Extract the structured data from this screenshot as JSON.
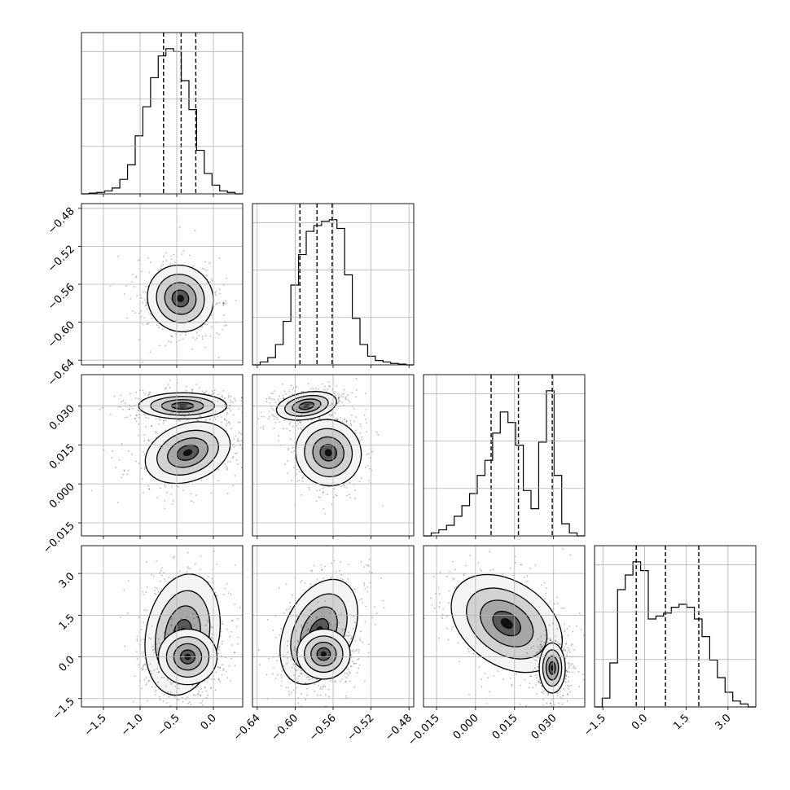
{
  "chart_data": {
    "type": "corner",
    "title": "",
    "grid": true,
    "parameters": [
      {
        "index": 0,
        "xticks": [
          "−1.5",
          "−1.0",
          "−0.5",
          "0.0"
        ],
        "xtick_values": [
          -1.5,
          -1.0,
          -0.5,
          0.0
        ],
        "range": [
          -1.8,
          0.4
        ],
        "yticks": [
          "−0.64",
          "−0.60",
          "−0.56",
          "−0.52",
          "−0.48"
        ],
        "ytick_values": [
          -0.64,
          -0.6,
          -0.56,
          -0.52,
          -0.48
        ],
        "quantiles": [
          -0.68,
          -0.44,
          -0.24
        ],
        "histogram": [
          0,
          0.005,
          0.01,
          0.02,
          0.04,
          0.1,
          0.2,
          0.4,
          0.6,
          0.8,
          0.95,
          1.0,
          0.98,
          0.78,
          0.58,
          0.3,
          0.14,
          0.06,
          0.02,
          0.01,
          0
        ]
      },
      {
        "index": 1,
        "xticks": [
          "−0.64",
          "−0.60",
          "−0.56",
          "−0.52",
          "−0.48"
        ],
        "xtick_values": [
          -0.64,
          -0.6,
          -0.56,
          -0.52,
          -0.48
        ],
        "range": [
          -0.645,
          -0.475
        ],
        "yticks": [
          "−0.015",
          "0.000",
          "0.015",
          "0.030"
        ],
        "ytick_values": [
          -0.015,
          0.0,
          0.015,
          0.03
        ],
        "quantiles": [
          -0.595,
          -0.577,
          -0.561
        ],
        "histogram": [
          0,
          0.02,
          0.05,
          0.14,
          0.3,
          0.55,
          0.76,
          0.92,
          0.96,
          0.99,
          1.0,
          0.94,
          0.62,
          0.32,
          0.14,
          0.06,
          0.03,
          0.02,
          0.01,
          0.005,
          0
        ]
      },
      {
        "index": 2,
        "xticks": [
          "−0.015",
          "0.000",
          "0.015",
          "0.030"
        ],
        "xtick_values": [
          -0.015,
          0.0,
          0.015,
          0.03
        ],
        "range": [
          -0.02,
          0.042
        ],
        "yticks": [
          "−1.5",
          "0.0",
          "1.5",
          "3.0"
        ],
        "ytick_values": [
          -1.5,
          0.0,
          1.5,
          3.0
        ],
        "quantiles": [
          0.006,
          0.0165,
          0.0295
        ],
        "histogram": [
          0,
          0.02,
          0.04,
          0.07,
          0.13,
          0.2,
          0.28,
          0.4,
          0.5,
          0.68,
          0.82,
          0.75,
          0.6,
          0.3,
          0.18,
          0.62,
          0.96,
          0.4,
          0.08,
          0.02,
          0
        ]
      },
      {
        "index": 3,
        "xticks": [
          "−1.5",
          "0.0",
          "1.5",
          "3.0"
        ],
        "xtick_values": [
          -1.5,
          0.0,
          1.5,
          3.0
        ],
        "range": [
          -1.8,
          4.0
        ],
        "quantiles": [
          -0.3,
          0.75,
          1.95
        ],
        "histogram": [
          0,
          0.06,
          0.3,
          0.8,
          0.9,
          0.99,
          0.93,
          0.6,
          0.62,
          0.64,
          0.68,
          0.7,
          0.68,
          0.6,
          0.48,
          0.32,
          0.2,
          0.1,
          0.04,
          0.02,
          0
        ]
      }
    ],
    "pairs": [
      {
        "row": 1,
        "col": 0,
        "blobs": [
          {
            "cx": -0.45,
            "cy": -0.575,
            "sx": 0.22,
            "sy": 0.018,
            "rot": -40
          }
        ]
      },
      {
        "row": 2,
        "col": 0,
        "blobs": [
          {
            "cx": -0.42,
            "cy": 0.03,
            "sx": 0.3,
            "sy": 0.0025,
            "rot": 0
          },
          {
            "cx": -0.35,
            "cy": 0.012,
            "sx": 0.3,
            "sy": 0.0055,
            "rot": -20
          }
        ]
      },
      {
        "row": 2,
        "col": 1,
        "blobs": [
          {
            "cx": -0.588,
            "cy": 0.03,
            "sx": 0.016,
            "sy": 0.0026,
            "rot": -10
          },
          {
            "cx": -0.565,
            "cy": 0.012,
            "sx": 0.017,
            "sy": 0.0065,
            "rot": -40
          }
        ]
      },
      {
        "row": 3,
        "col": 0,
        "blobs": [
          {
            "cx": -0.42,
            "cy": 0.8,
            "sx": 0.25,
            "sy": 1.1,
            "rot": 10
          },
          {
            "cx": -0.35,
            "cy": 0.0,
            "sx": 0.2,
            "sy": 0.5,
            "rot": 0
          }
        ]
      },
      {
        "row": 3,
        "col": 1,
        "blobs": [
          {
            "cx": -0.575,
            "cy": 0.9,
            "sx": 0.018,
            "sy": 1.0,
            "rot": 25
          },
          {
            "cx": -0.57,
            "cy": 0.1,
            "sx": 0.014,
            "sy": 0.45,
            "rot": 0
          }
        ]
      },
      {
        "row": 3,
        "col": 2,
        "blobs": [
          {
            "cx": 0.012,
            "cy": 1.2,
            "sx": 0.008,
            "sy": 1.1,
            "rot": -55
          },
          {
            "cx": 0.0295,
            "cy": -0.4,
            "sx": 0.0025,
            "sy": 0.45,
            "rot": 0
          }
        ]
      }
    ]
  }
}
